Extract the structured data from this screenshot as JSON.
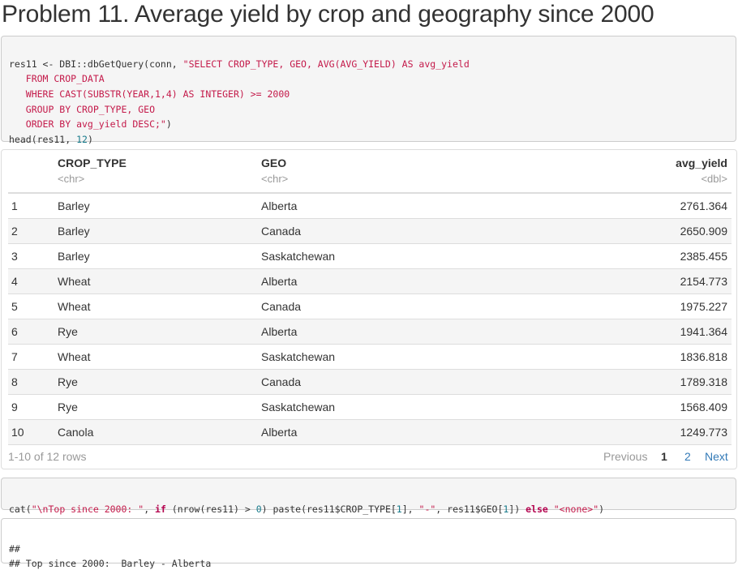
{
  "title": "Problem 11. Average yield by crop and geography since 2000",
  "code1": {
    "l1_a": "res11 <- DBI::dbGetQuery(conn, ",
    "l1_b": "\"SELECT CROP_TYPE, GEO, AVG(AVG_YIELD) AS avg_yield",
    "l2": "   FROM CROP_DATA",
    "l3": "   WHERE CAST(SUBSTR(YEAR,1,4) AS INTEGER) >= 2000",
    "l4": "   GROUP BY CROP_TYPE, GEO",
    "l5_a": "   ORDER BY avg_yield DESC;\"",
    "l5_b": ")",
    "l6_a": "head(res11, ",
    "l6_b": "12",
    "l6_c": ")"
  },
  "table": {
    "columns": [
      {
        "name": "",
        "type": ""
      },
      {
        "name": "CROP_TYPE",
        "type": "<chr>"
      },
      {
        "name": "GEO",
        "type": "<chr>"
      },
      {
        "name": "avg_yield",
        "type": "<dbl>"
      }
    ],
    "rows": [
      [
        "1",
        "Barley",
        "Alberta",
        "2761.364"
      ],
      [
        "2",
        "Barley",
        "Canada",
        "2650.909"
      ],
      [
        "3",
        "Barley",
        "Saskatchewan",
        "2385.455"
      ],
      [
        "4",
        "Wheat",
        "Alberta",
        "2154.773"
      ],
      [
        "5",
        "Wheat",
        "Canada",
        "1975.227"
      ],
      [
        "6",
        "Rye",
        "Alberta",
        "1941.364"
      ],
      [
        "7",
        "Wheat",
        "Saskatchewan",
        "1836.818"
      ],
      [
        "8",
        "Rye",
        "Canada",
        "1789.318"
      ],
      [
        "9",
        "Rye",
        "Saskatchewan",
        "1568.409"
      ],
      [
        "10",
        "Canola",
        "Alberta",
        "1249.773"
      ]
    ],
    "pager": {
      "info": "1-10 of 12 rows",
      "previous": "Previous",
      "page1": "1",
      "page2": "2",
      "next": "Next"
    }
  },
  "code2": {
    "a": "cat(",
    "b": "\"\\nTop since 2000: \"",
    "c": ", ",
    "d": "if",
    "e": " (nrow(res11) > ",
    "f": "0",
    "g": ") paste(res11$CROP_TYPE[",
    "h": "1",
    "i": "], ",
    "j": "\"-\"",
    "k": ", res11$GEO[",
    "l": "1",
    "m": "]) ",
    "n": "else",
    "o": " ",
    "p": "\"<none>\"",
    "q": ")"
  },
  "output": {
    "l1": "##",
    "l2": "## Top since 2000:  Barley - Alberta"
  }
}
